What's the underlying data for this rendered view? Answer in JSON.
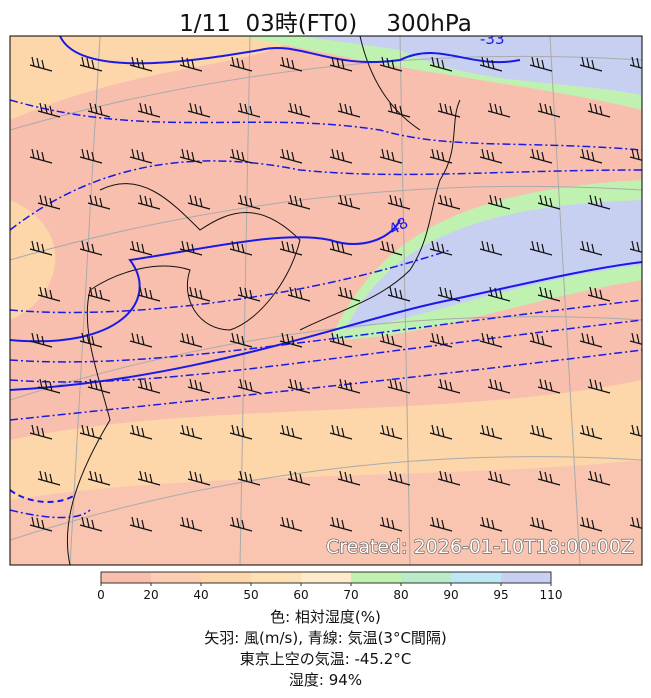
{
  "title": "1/11  03時(FT0)    300hPa",
  "contour_labels": [
    "-48",
    "-33"
  ],
  "created": "Created: 2026-01-10T18:00:00Z",
  "colorbar": {
    "ticks": [
      0,
      20,
      40,
      50,
      60,
      70,
      80,
      90,
      95,
      110
    ],
    "colors": [
      "#f9bfae",
      "#fccdb2",
      "#fdd6aa",
      "#fde0b4",
      "#fdebca",
      "#bff2b0",
      "#b8ecc8",
      "#bfe6f4",
      "#c8d0f2"
    ]
  },
  "caption": [
    "色: 相対湿度(%)",
    "矢羽: 風(m/s),  青線: 気温(3°C間隔)",
    "東京上空の気温: -45.2°C",
    "湿度: 94%"
  ]
}
